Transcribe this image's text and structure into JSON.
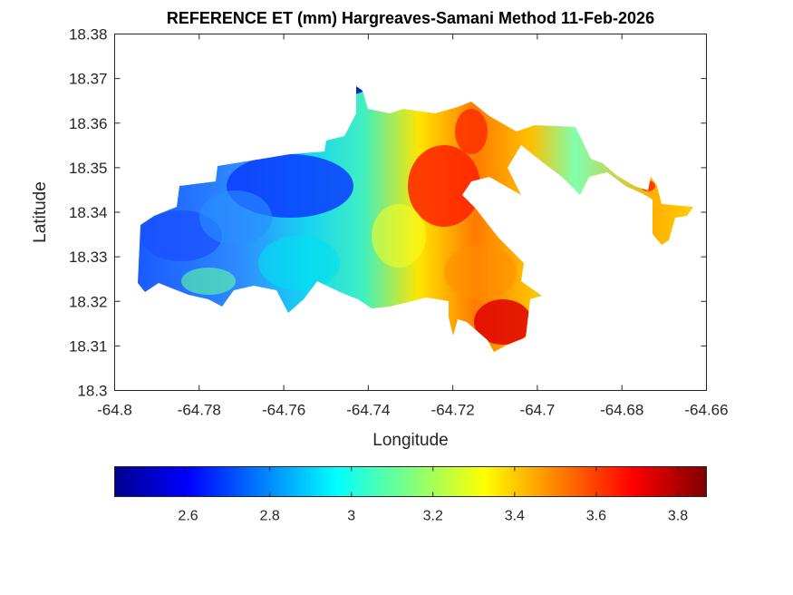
{
  "title": "REFERENCE ET (mm) Hargreaves-Samani Method  11-Feb-2026",
  "map": {
    "xlabel": "Longitude",
    "ylabel": "Latitude",
    "xlim": [
      -64.8,
      -64.66
    ],
    "ylim": [
      18.3,
      18.38
    ],
    "x_ticks": [
      "-64.8",
      "-64.78",
      "-64.76",
      "-64.74",
      "-64.72",
      "-64.7",
      "-64.68",
      "-64.66"
    ],
    "y_ticks": [
      "18.3",
      "18.31",
      "18.32",
      "18.33",
      "18.34",
      "18.35",
      "18.36",
      "18.37",
      "18.38"
    ],
    "colormap": "jet",
    "colorbar": {
      "orientation": "horizontal",
      "placement": "below",
      "range": [
        2.42,
        3.87
      ],
      "ticks": [
        "2.6",
        "2.8",
        "3",
        "3.2",
        "3.4",
        "3.6",
        "3.8"
      ],
      "tick_values": [
        2.6,
        2.8,
        3.0,
        3.2,
        3.4,
        3.6,
        3.8
      ]
    }
  }
}
